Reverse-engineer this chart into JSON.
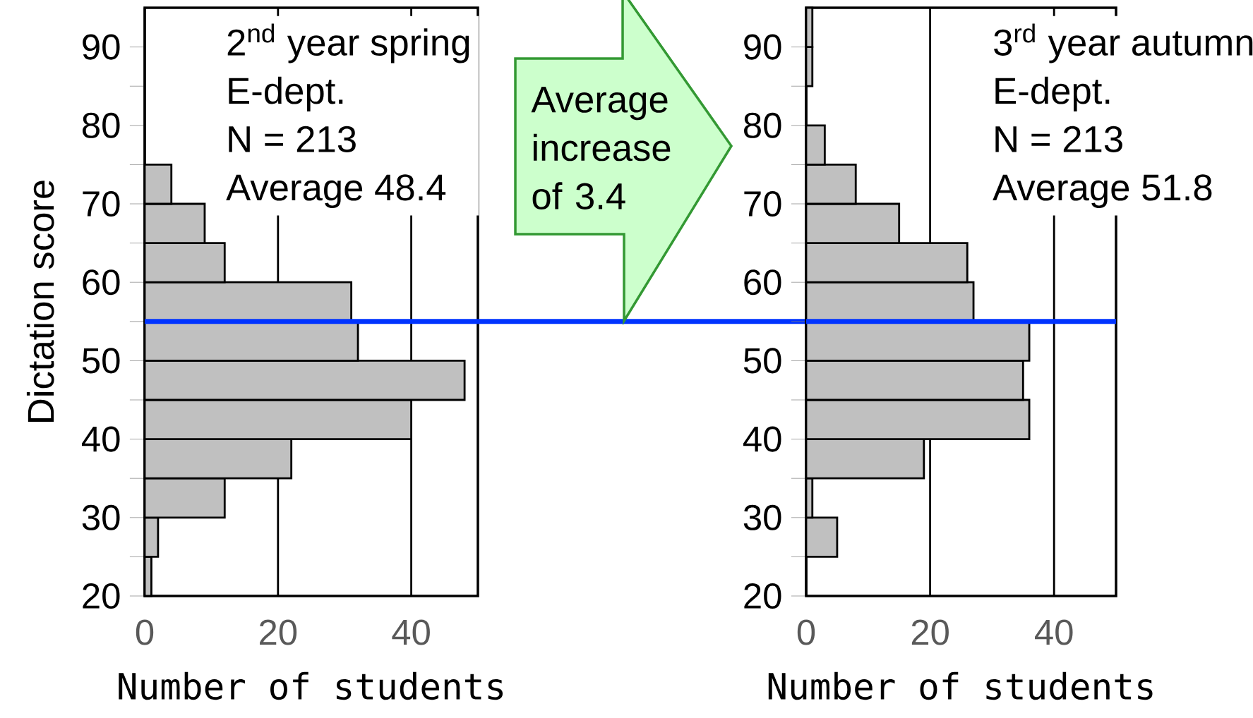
{
  "chart_data": [
    {
      "type": "histogram",
      "orientation": "horizontal",
      "ylabel": "Dictation score",
      "xlabel": "Number of students",
      "bins": [
        20,
        25,
        30,
        35,
        40,
        45,
        50,
        55,
        60,
        65,
        70,
        75
      ],
      "values": [
        1,
        2,
        12,
        22,
        40,
        48,
        32,
        31,
        12,
        9,
        4
      ],
      "color": "#c0c0c0",
      "xlim": [
        0,
        50
      ],
      "xticks": [
        0,
        20,
        40
      ],
      "ylim": [
        20,
        95
      ],
      "yticks": [
        20,
        30,
        40,
        50,
        60,
        70,
        80,
        90
      ],
      "grid": "x",
      "ref_lines": [
        {
          "axis": "y",
          "value": 55,
          "color": "#0033ff"
        }
      ],
      "annotations": [
        "2$^{nd}$ year spring",
        "E-dept.",
        "N = 213",
        "Average 48.4",
        "Average increase of 3.4"
      ]
    },
    {
      "type": "histogram",
      "orientation": "horizontal",
      "xlabel": "Number of students",
      "bins": [
        20,
        25,
        30,
        35,
        40,
        45,
        50,
        55,
        60,
        65,
        70,
        75,
        80,
        85,
        90,
        95
      ],
      "values": [
        0,
        5,
        1,
        19,
        36,
        35,
        36,
        27,
        26,
        15,
        8,
        3,
        0,
        1,
        1
      ],
      "color": "#c0c0c0",
      "xlim": [
        0,
        50
      ],
      "xticks": [
        0,
        20,
        40
      ],
      "ylim": [
        20,
        95
      ],
      "yticks": [
        20,
        30,
        40,
        50,
        60,
        70,
        80,
        90
      ],
      "grid": "x",
      "ref_lines": [
        {
          "axis": "y",
          "value": 55,
          "color": "#0033ff"
        }
      ],
      "annotations": [
        "3$^{rd}$ year autumn",
        "E-dept.",
        "N = 213",
        "Average 51.8"
      ]
    }
  ]
}
